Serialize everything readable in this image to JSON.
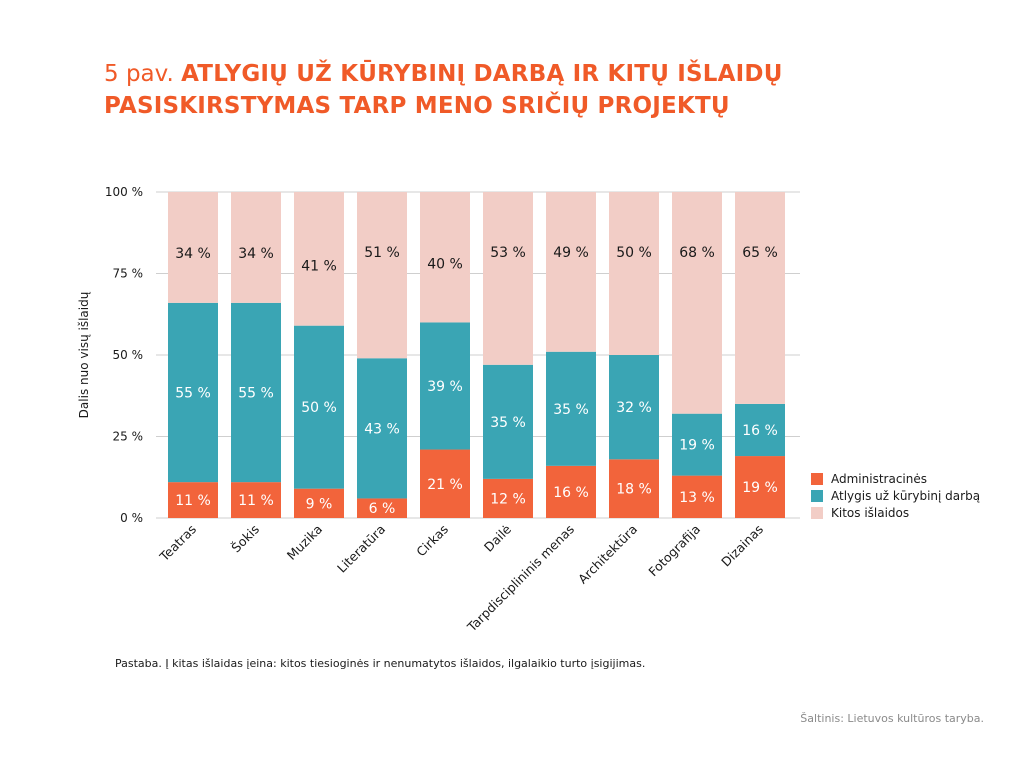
{
  "figure": {
    "prefix": "5 pav.",
    "title": "ATLYGIŲ UŽ KŪRYBINĮ DARBĄ IR KITŲ IŠLAIDŲ PASISKIRSTYMAS TARP MENO SRIČIŲ PROJEKTŲ"
  },
  "note": "Pastaba. Į kitas išlaidas įeina: kitos tiesioginės ir nenumatytos išlaidos, ilgalaikio turto įsigijimas.",
  "source": "Šaltinis: Lietuvos kultūros taryba.",
  "colors": {
    "Administracinės": "#f2643b",
    "Atlygis už kūrybinį darbą": "#3aa5b4",
    "Kitos išlaidos": "#f2cdc6"
  },
  "chart_data": {
    "type": "bar",
    "stacked": true,
    "ylabel": "Dalis nuo visų išlaidų",
    "ylim": [
      0,
      100
    ],
    "yticks": [
      "0 %",
      "25 %",
      "50 %",
      "75 %",
      "100 %"
    ],
    "categories": [
      "Teatras",
      "Šokis",
      "Muzika",
      "Literatūra",
      "Cirkas",
      "Dailė",
      "Tarpdisciplininis menas",
      "Architektūra",
      "Fotografija",
      "Dizainas"
    ],
    "series": [
      {
        "name": "Administracinės",
        "values": [
          11,
          11,
          9,
          6,
          21,
          12,
          16,
          18,
          13,
          19
        ],
        "labels": [
          "11 %",
          "11 %",
          "9 %",
          "6 %",
          "21 %",
          "12 %",
          "16 %",
          "18 %",
          "13 %",
          "19 %"
        ]
      },
      {
        "name": "Atlygis už kūrybinį darbą",
        "values": [
          55,
          55,
          50,
          43,
          39,
          35,
          35,
          32,
          19,
          16
        ],
        "labels": [
          "55 %",
          "55 %",
          "50 %",
          "43 %",
          "39 %",
          "35 %",
          "35 %",
          "32 %",
          "19 %",
          "16 %"
        ]
      },
      {
        "name": "Kitos išlaidos",
        "values": [
          34,
          34,
          41,
          51,
          40,
          53,
          49,
          50,
          68,
          65
        ],
        "labels": [
          "34 %",
          "34 %",
          "41 %",
          "51 %",
          "40 %",
          "53 %",
          "49 %",
          "50 %",
          "68 %",
          "65 %"
        ]
      }
    ],
    "legend": [
      "Administracinės",
      "Atlygis už kūrybinį darbą",
      "Kitos išlaidos"
    ],
    "legend_position": "right",
    "grid": true
  }
}
